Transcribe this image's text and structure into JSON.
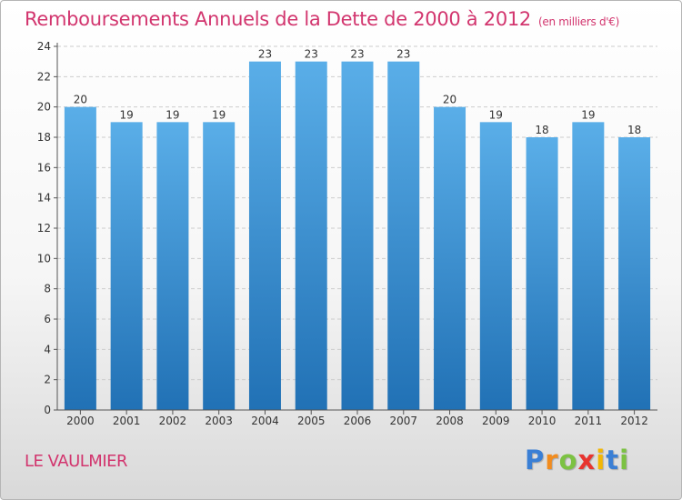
{
  "title": "Remboursements Annuels de la Dette de 2000 à 2012",
  "subtitle": "(en milliers d'€)",
  "location": "LE VAULMIER",
  "logo": {
    "letters": [
      {
        "ch": "P",
        "color": "#3a7fd5"
      },
      {
        "ch": "r",
        "color": "#f28c1e"
      },
      {
        "ch": "o",
        "color": "#7cc242"
      },
      {
        "ch": "x",
        "color": "#e8342f"
      },
      {
        "ch": "i",
        "color": "#f2b705"
      },
      {
        "ch": "t",
        "color": "#3a7fd5"
      },
      {
        "ch": "i",
        "color": "#7cc242"
      }
    ]
  },
  "colors": {
    "title": "#d2356e",
    "bar_top": "#5aaee8",
    "bar_bottom": "#2171b5",
    "grid": "#cccccc",
    "axis": "#555555"
  },
  "chart_data": {
    "type": "bar",
    "categories": [
      "2000",
      "2001",
      "2002",
      "2003",
      "2004",
      "2005",
      "2006",
      "2007",
      "2008",
      "2009",
      "2010",
      "2011",
      "2012"
    ],
    "values": [
      20,
      19,
      19,
      19,
      23,
      23,
      23,
      23,
      20,
      19,
      18,
      19,
      18
    ],
    "ylim": [
      0,
      24
    ],
    "yticks": [
      0,
      2,
      4,
      6,
      8,
      10,
      12,
      14,
      16,
      18,
      20,
      22,
      24
    ],
    "grid": true
  }
}
